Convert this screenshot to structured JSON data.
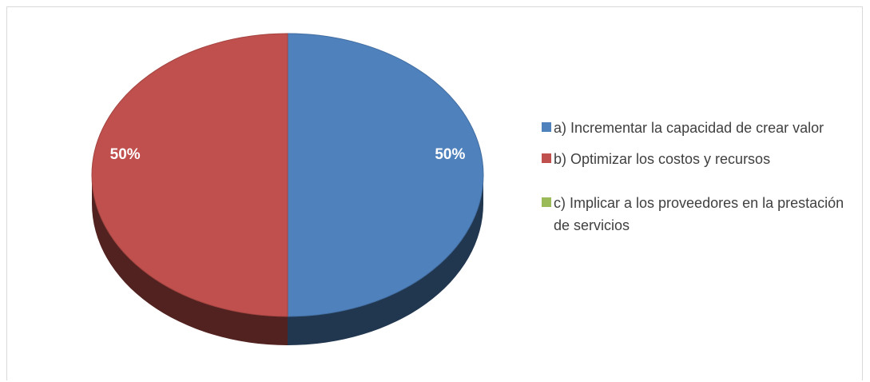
{
  "chart_data": {
    "type": "pie",
    "title": "",
    "slices": [
      {
        "label": "a) Incrementar la capacidad de crear valor",
        "value": 50,
        "data_label": "50%",
        "color": "#4f81bd"
      },
      {
        "label": "b) Optimizar los costos y recursos",
        "value": 50,
        "data_label": "50%",
        "color": "#c0504d"
      },
      {
        "label": "c) Implicar a los proveedores en la prestación de servicios",
        "value": 0,
        "data_label": "",
        "color": "#9bbb59"
      }
    ],
    "legend_position": "right",
    "style": "3d"
  }
}
